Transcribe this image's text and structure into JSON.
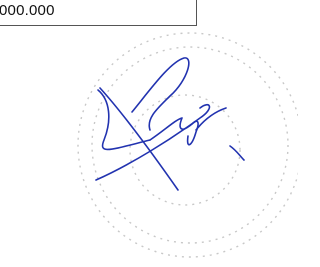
{
  "field": {
    "value": "000.000"
  }
}
